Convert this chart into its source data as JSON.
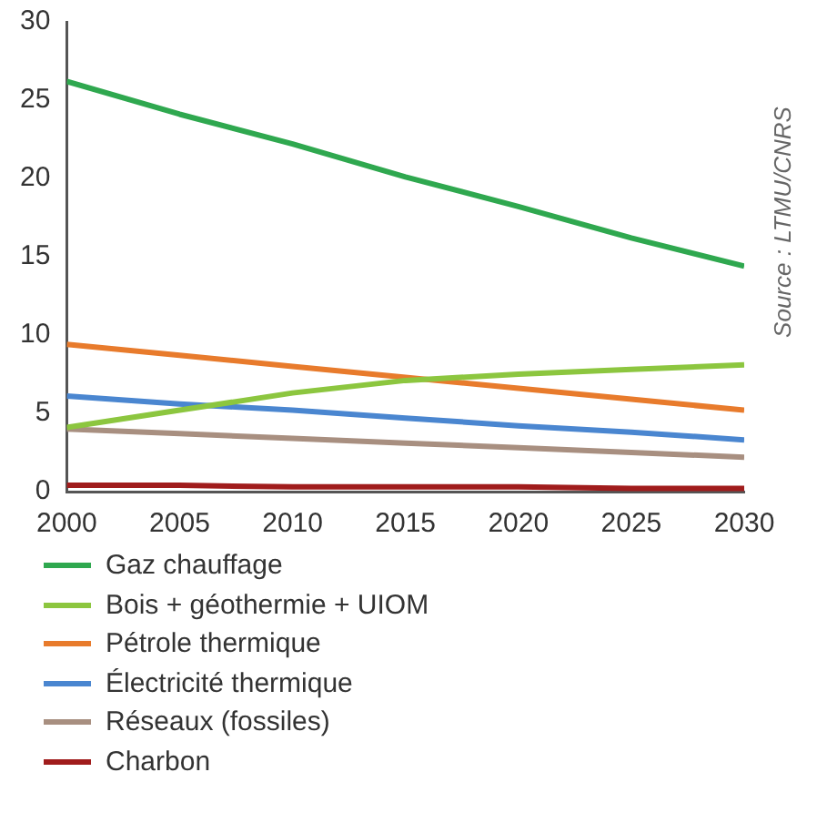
{
  "chart_data": {
    "type": "line",
    "x": [
      2000,
      2005,
      2010,
      2015,
      2020,
      2025,
      2030
    ],
    "series": [
      {
        "name": "Gaz chauffage",
        "color": "#2fa84f",
        "values": [
          26.2,
          24.1,
          22.2,
          20.1,
          18.2,
          16.2,
          14.4
        ]
      },
      {
        "name": "Bois + géothermie + UIOM",
        "color": "#8cc63f",
        "values": [
          4.1,
          5.2,
          6.3,
          7.1,
          7.5,
          7.8,
          8.1
        ]
      },
      {
        "name": "Pétrole thermique",
        "color": "#e87b2c",
        "values": [
          9.4,
          8.7,
          8.0,
          7.3,
          6.6,
          5.9,
          5.2
        ]
      },
      {
        "name": "Électricité thermique",
        "color": "#4a86d0",
        "values": [
          6.1,
          5.6,
          5.2,
          4.7,
          4.2,
          3.8,
          3.3
        ]
      },
      {
        "name": "Réseaux (fossiles)",
        "color": "#a88f80",
        "values": [
          4.0,
          3.7,
          3.4,
          3.1,
          2.8,
          2.5,
          2.2
        ]
      },
      {
        "name": "Charbon",
        "color": "#a01c1c",
        "values": [
          0.4,
          0.4,
          0.3,
          0.3,
          0.3,
          0.2,
          0.2
        ]
      }
    ],
    "xlim": [
      2000,
      2030
    ],
    "xticks": [
      2000,
      2005,
      2010,
      2015,
      2020,
      2025,
      2030
    ],
    "ylim": [
      0,
      30
    ],
    "yticks": [
      0,
      5,
      10,
      15,
      20,
      25,
      30
    ],
    "grid": false,
    "legend": "bottom",
    "marker": "none",
    "line_style": "solid",
    "annotations": [
      "Source : LTMU/CNRS"
    ]
  }
}
